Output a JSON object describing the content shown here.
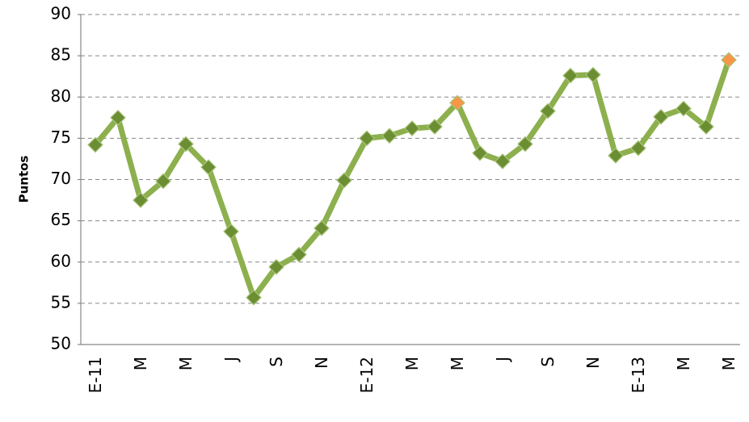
{
  "chart_data": {
    "type": "line",
    "y_label": "Puntos",
    "categories": [
      "E-11",
      null,
      "M",
      null,
      "M",
      null,
      "J",
      null,
      "S",
      null,
      "N",
      null,
      "E-12",
      null,
      "M",
      null,
      "M",
      null,
      "J",
      null,
      "S",
      null,
      "N",
      null,
      "E-13",
      null,
      "M",
      null,
      "M"
    ],
    "series": [
      {
        "name": "Puntos",
        "color": "#8db04e",
        "values": [
          74.2,
          77.5,
          67.5,
          69.8,
          74.3,
          71.5,
          63.7,
          55.7,
          59.4,
          60.9,
          64.1,
          69.9,
          75.0,
          75.3,
          76.2,
          76.4,
          79.3,
          73.2,
          72.2,
          74.3,
          78.3,
          82.6,
          82.7,
          72.9,
          73.8,
          77.6,
          78.6,
          76.4,
          84.5
        ],
        "marker_color": "#6b8e33",
        "point_colors": [
          null,
          null,
          null,
          null,
          null,
          null,
          null,
          null,
          null,
          null,
          null,
          null,
          null,
          null,
          null,
          null,
          "#f79646",
          null,
          null,
          null,
          null,
          null,
          null,
          null,
          null,
          null,
          null,
          null,
          "#f79646"
        ]
      }
    ],
    "ylim": [
      50,
      90
    ],
    "yticks": [
      50,
      55,
      60,
      65,
      70,
      75,
      80,
      85,
      90
    ],
    "grid": true
  }
}
